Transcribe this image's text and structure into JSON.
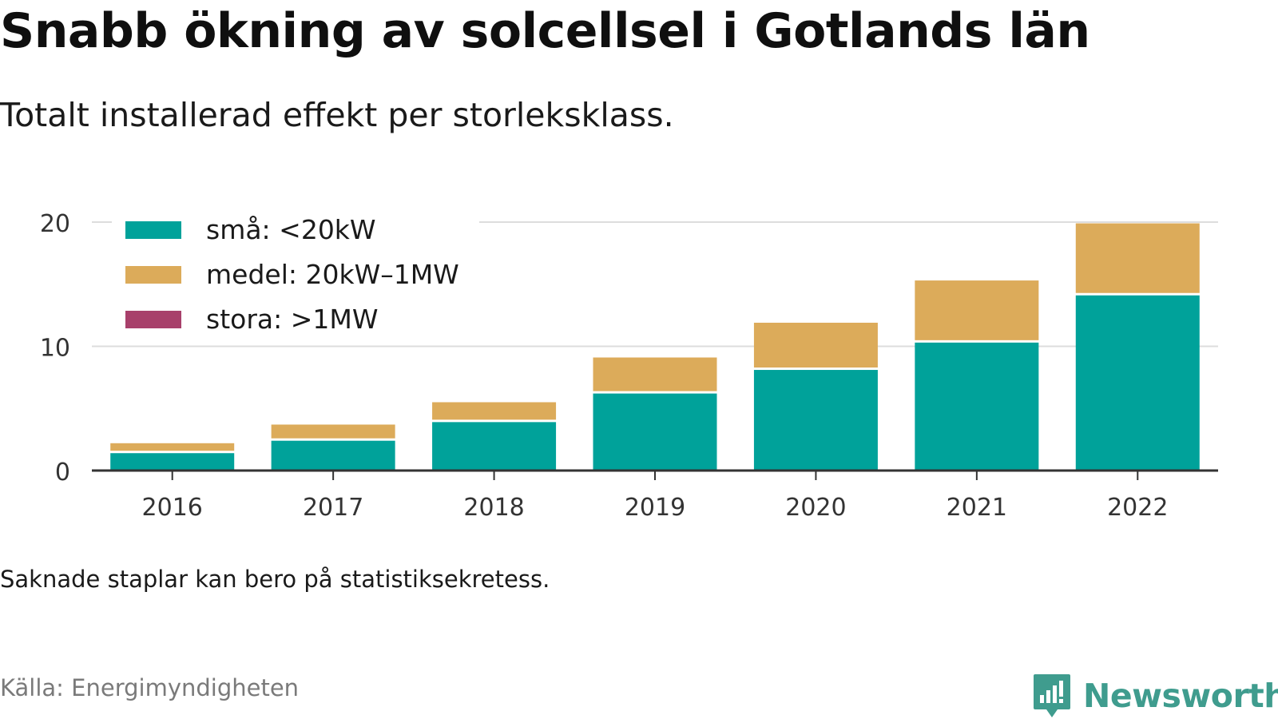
{
  "header": {
    "title": "Snabb ökning av solcellsel i Gotlands län",
    "subtitle": "Totalt installerad effekt per storleksklass."
  },
  "footer": {
    "note": "Saknade staplar kan bero på statistiksekretess.",
    "source": "Källa: Energimyndigheten",
    "brand": "Newsworthy",
    "brand_icon": "bar-chart-speech-bubble-icon"
  },
  "colors": {
    "small": "#00a29a",
    "medium": "#dcab5a",
    "large": "#a8406b",
    "brand": "#3f9c8e"
  },
  "chart_data": {
    "type": "bar",
    "stacked": true,
    "categories": [
      "2016",
      "2017",
      "2018",
      "2019",
      "2020",
      "2021",
      "2022"
    ],
    "series": [
      {
        "name": "små: <20kW",
        "values": [
          1.4,
          2.4,
          3.9,
          6.2,
          8.1,
          10.3,
          14.1
        ]
      },
      {
        "name": "medel: 20kW–1MW",
        "values": [
          0.8,
          1.3,
          1.6,
          2.9,
          3.8,
          5.0,
          5.8
        ]
      },
      {
        "name": "stora: >1MW",
        "values": [
          0,
          0,
          0,
          0,
          0,
          0,
          0
        ]
      }
    ],
    "yticks": [
      0,
      10,
      20
    ],
    "ylim": [
      0,
      20
    ],
    "grid": true,
    "legend_position": "top-left"
  }
}
